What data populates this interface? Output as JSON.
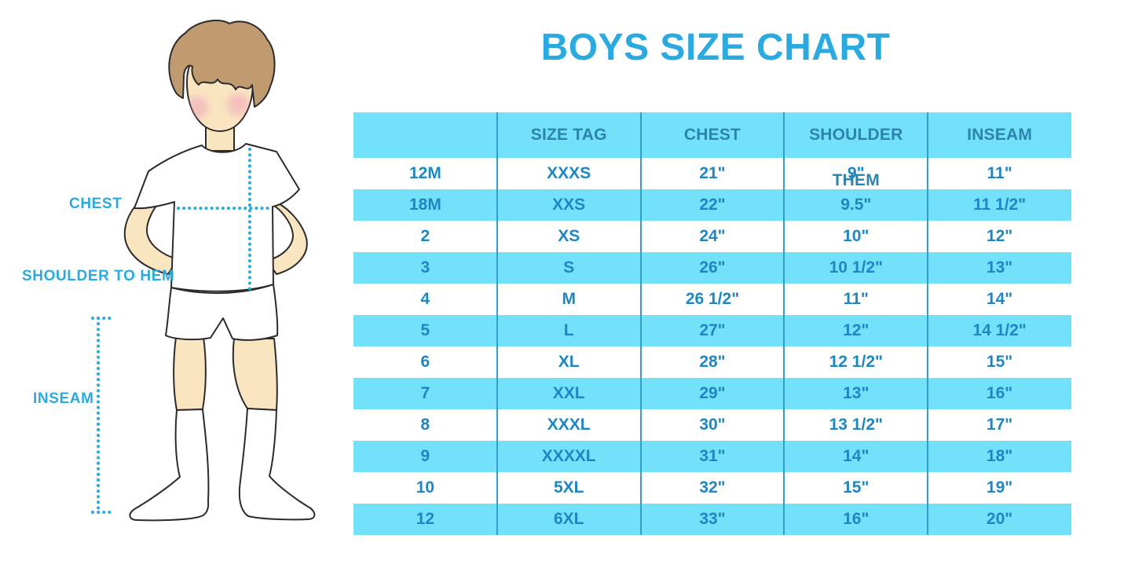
{
  "title": "BOYS SIZE CHART",
  "figure": {
    "labels": {
      "chest": "CHEST",
      "shoulder_to_hem": "SHOULDER TO HEM",
      "inseam": "INSEAM"
    }
  },
  "chart_data": {
    "type": "table",
    "title": "BOYS SIZE CHART",
    "columns": [
      "",
      "SIZE TAG",
      "CHEST",
      "SHOULDER THEM",
      "INSEAM"
    ],
    "rows": [
      [
        "12M",
        "XXXS",
        "21\"",
        "9\"",
        "11\""
      ],
      [
        "18M",
        "XXS",
        "22\"",
        "9.5\"",
        "11 1/2\""
      ],
      [
        "2",
        "XS",
        "24\"",
        "10\"",
        "12\""
      ],
      [
        "3",
        "S",
        "26\"",
        "10 1/2\"",
        "13\""
      ],
      [
        "4",
        "M",
        "26 1/2\"",
        "11\"",
        "14\""
      ],
      [
        "5",
        "L",
        "27\"",
        "12\"",
        "14 1/2\""
      ],
      [
        "6",
        "XL",
        "28\"",
        "12 1/2\"",
        "15\""
      ],
      [
        "7",
        "XXL",
        "29\"",
        "13\"",
        "16\""
      ],
      [
        "8",
        "XXXL",
        "30\"",
        "13 1/2\"",
        "17\""
      ],
      [
        "9",
        "XXXXL",
        "31\"",
        "14\"",
        "18\""
      ],
      [
        "10",
        "5XL",
        "32\"",
        "15\"",
        "19\""
      ],
      [
        "12",
        "6XL",
        "33\"",
        "16\"",
        "20\""
      ]
    ],
    "striping": "alternating white / cyan rows, cyan header"
  },
  "colors": {
    "accent": "#29ABE2",
    "row_cyan": "#74E1FA",
    "divider": "#2F9FCF",
    "header_text": "#2C84AE",
    "cell_text": "#1D87C4",
    "skin": "#FAE5C1",
    "hair": "#C09B6F",
    "cheek": "#F0A2BC",
    "outline": "#2B2B2B",
    "garment": "#FFFFFF"
  }
}
